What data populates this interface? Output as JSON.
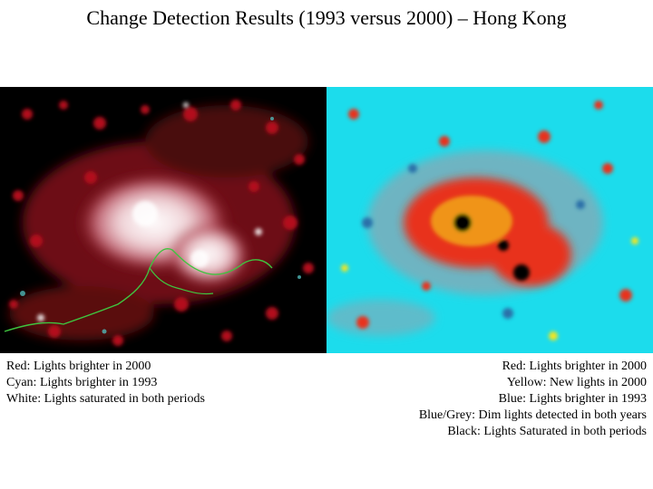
{
  "title": "Change Detection Results (1993 versus 2000) – Hong Kong",
  "left_image": {
    "legend": [
      "Red: Lights brighter in 2000",
      "Cyan: Lights brighter in 1993",
      "White: Lights saturated in both periods"
    ],
    "colors": {
      "background": "#000000",
      "red": "#b3101a",
      "cyan": "#4fb7b7",
      "white": "#ffffff",
      "coastline": "#3fc43f"
    }
  },
  "right_image": {
    "legend": [
      "Red: Lights brighter in 2000",
      "Yellow: New lights in 2000",
      "Blue: Lights brighter in 1993",
      "Blue/Grey: Dim lights detected in both years",
      "Black: Lights Saturated in both periods"
    ],
    "colors": {
      "background": "#1cdcec",
      "red": "#e8321a",
      "yellow": "#f5e51a",
      "blue": "#2a6fa8",
      "blue_grey": "#8aa7b4",
      "black": "#000000"
    }
  }
}
